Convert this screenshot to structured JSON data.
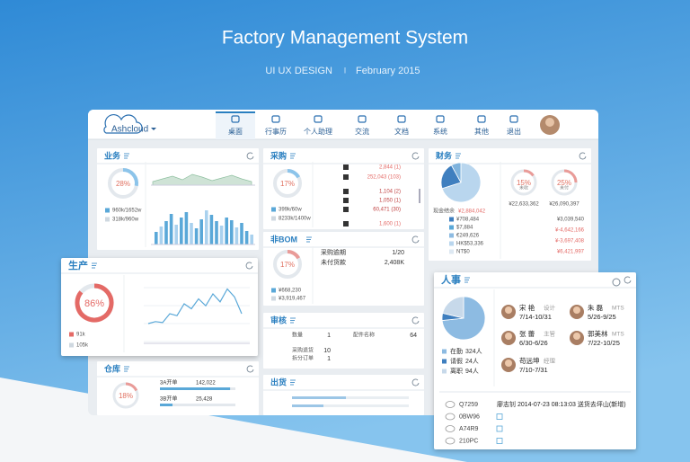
{
  "header": {
    "title": "Factory Management System",
    "subtitle": "UI UX DESIGN",
    "separator": "I",
    "date": "February 2015"
  },
  "app": {
    "logo": "Ashcloud",
    "nav": [
      "桌面",
      "行事历",
      "个人助理",
      "交流",
      "文档",
      "系统",
      "其他",
      "退出"
    ]
  },
  "business": {
    "title": "业务",
    "percent": 28,
    "percent_label": "28%",
    "legend": [
      "960k/1652w",
      "318k/960w"
    ],
    "area": [
      4,
      7,
      10,
      6,
      12,
      9,
      5,
      8,
      11,
      7,
      4
    ],
    "bars": [
      14,
      20,
      26,
      34,
      22,
      30,
      36,
      24,
      18,
      28,
      38,
      33,
      26,
      21,
      30,
      27,
      19,
      24,
      15,
      11
    ]
  },
  "purchase": {
    "title": "采购",
    "percent": 17,
    "percent_label": "17%",
    "legend": [
      "399k/60w",
      "8233k/1400w"
    ],
    "rows": [
      "2,844 (1)",
      "252,043 (103)",
      "1,104 (2)",
      "1,050 (1)",
      "60,471 (30)",
      "1,600 (1)"
    ]
  },
  "finance": {
    "title": "财务",
    "pie": [
      70,
      22,
      8
    ],
    "cash_label": "现金结余",
    "cash": "¥2,884,042",
    "currencies": [
      "¥708,484",
      "$7,884",
      "€249,626",
      "HK$53,336",
      "NT$0"
    ],
    "receivable": {
      "percent": 15,
      "percent_label": "15%",
      "label": "未收",
      "amount": "¥22,633,362"
    },
    "payable": {
      "percent": 25,
      "percent_label": "25%",
      "label": "未付",
      "amount": "¥26,090,397"
    },
    "summary": [
      "¥3,039,540",
      "¥-4,642,166",
      "¥-3,697,408",
      "¥6,421,997"
    ]
  },
  "nonbom": {
    "title": "非BOM",
    "percent": 17,
    "percent_label": "17%",
    "rows": [
      [
        "采购逾期",
        "1/20"
      ],
      [
        "未付货款",
        "2,408K"
      ]
    ],
    "amounts": [
      "¥668,230",
      "¥3,919,467"
    ]
  },
  "production": {
    "title": "生产",
    "percent": 86,
    "percent_label": "86%",
    "legend": [
      "91k",
      "105k"
    ],
    "line": [
      20,
      22,
      21,
      30,
      28,
      40,
      35,
      45,
      38,
      50,
      42,
      55,
      47,
      30
    ]
  },
  "audit": {
    "title": "审核",
    "rows": [
      [
        "数量",
        "1",
        "配件名称",
        "64"
      ],
      [
        "采购退货",
        "10"
      ],
      [
        "拆分订单",
        "1"
      ]
    ]
  },
  "warehouse": {
    "title": "仓库",
    "percent": 18,
    "percent_label": "18%",
    "rows": [
      {
        "label": "3A开单",
        "value": 142022,
        "value_label": "142,022"
      },
      {
        "label": "3B开单",
        "value": 25428,
        "value_label": "25,428"
      }
    ]
  },
  "shipping": {
    "title": "出货",
    "bars": [
      60,
      35
    ]
  },
  "hr": {
    "title": "人事",
    "status": [
      {
        "label": "在勤",
        "value": 324,
        "value_label": "324人",
        "color": "#8dbbe2"
      },
      {
        "label": "请假",
        "value": 24,
        "value_label": "24人",
        "color": "#3f7fbf"
      },
      {
        "label": "离职",
        "value": 94,
        "value_label": "94人",
        "color": "#c7d9ea"
      }
    ],
    "people": [
      {
        "name": "宋 艳",
        "role": "设计",
        "dates": "7/14-10/31"
      },
      {
        "name": "朱 磊",
        "role": "MTS",
        "dates": "5/26-9/25"
      },
      {
        "name": "张 蕾",
        "role": "主管",
        "dates": "6/30-6/26"
      },
      {
        "name": "郭美林",
        "role": "MTS",
        "dates": "7/22-10/25"
      },
      {
        "name": "苟远坤",
        "role": "经理",
        "dates": "7/10-7/31"
      }
    ],
    "log": [
      {
        "code": "Q7259",
        "text": "廖志钊 2014-07-23 08:13:03 送货去坪山(新增)"
      },
      {
        "code": "0BW96"
      },
      {
        "code": "A74R9"
      },
      {
        "code": "210PC"
      }
    ]
  }
}
